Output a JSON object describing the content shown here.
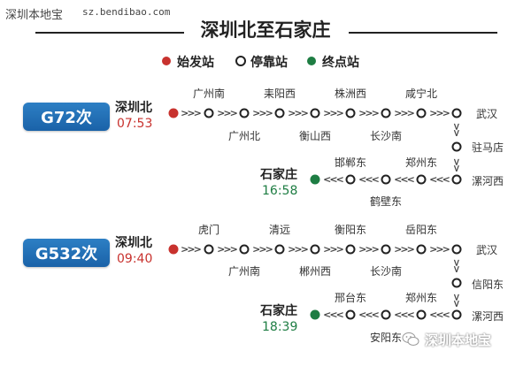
{
  "header": {
    "site_name": "深圳本地宝",
    "site_url": "sz.bendibao.com",
    "title": "深圳北至石家庄"
  },
  "legend": {
    "origin": "始发站",
    "stop": "停靠站",
    "terminal": "终点站"
  },
  "colors": {
    "origin": "#c8322e",
    "terminal": "#1e7d43",
    "badge": "#1f6db3"
  },
  "trains": [
    {
      "number": "G72次",
      "origin": {
        "name": "深圳北",
        "time": "07:53"
      },
      "destination": {
        "name": "石家庄",
        "time": "16:58"
      },
      "top_row_upper": [
        "广州南",
        "耒阳西",
        "株洲西",
        "咸宁北"
      ],
      "top_row_lower": [
        "广州北",
        "衡山西",
        "长沙南"
      ],
      "turn_upper": "武汉",
      "turn_middle": "驻马店",
      "turn_lower": "漯河西",
      "return_upper": [
        "邯郸东",
        "郑州东"
      ],
      "return_lower": [
        "鹤壁东"
      ]
    },
    {
      "number": "G532次",
      "origin": {
        "name": "深圳北",
        "time": "09:40"
      },
      "destination": {
        "name": "石家庄",
        "time": "18:39"
      },
      "top_row_upper": [
        "虎门",
        "清远",
        "衡阳东",
        "岳阳东"
      ],
      "top_row_lower": [
        "广州南",
        "郴州西",
        "长沙南"
      ],
      "turn_upper": "武汉",
      "turn_middle": "信阳东",
      "turn_lower": "漯河西",
      "return_upper": [
        "邢台东",
        "郑州东"
      ],
      "return_lower": [
        "安阳东"
      ]
    }
  ],
  "watermark": {
    "icon": "wechat-icon",
    "text": "深圳本地宝"
  }
}
